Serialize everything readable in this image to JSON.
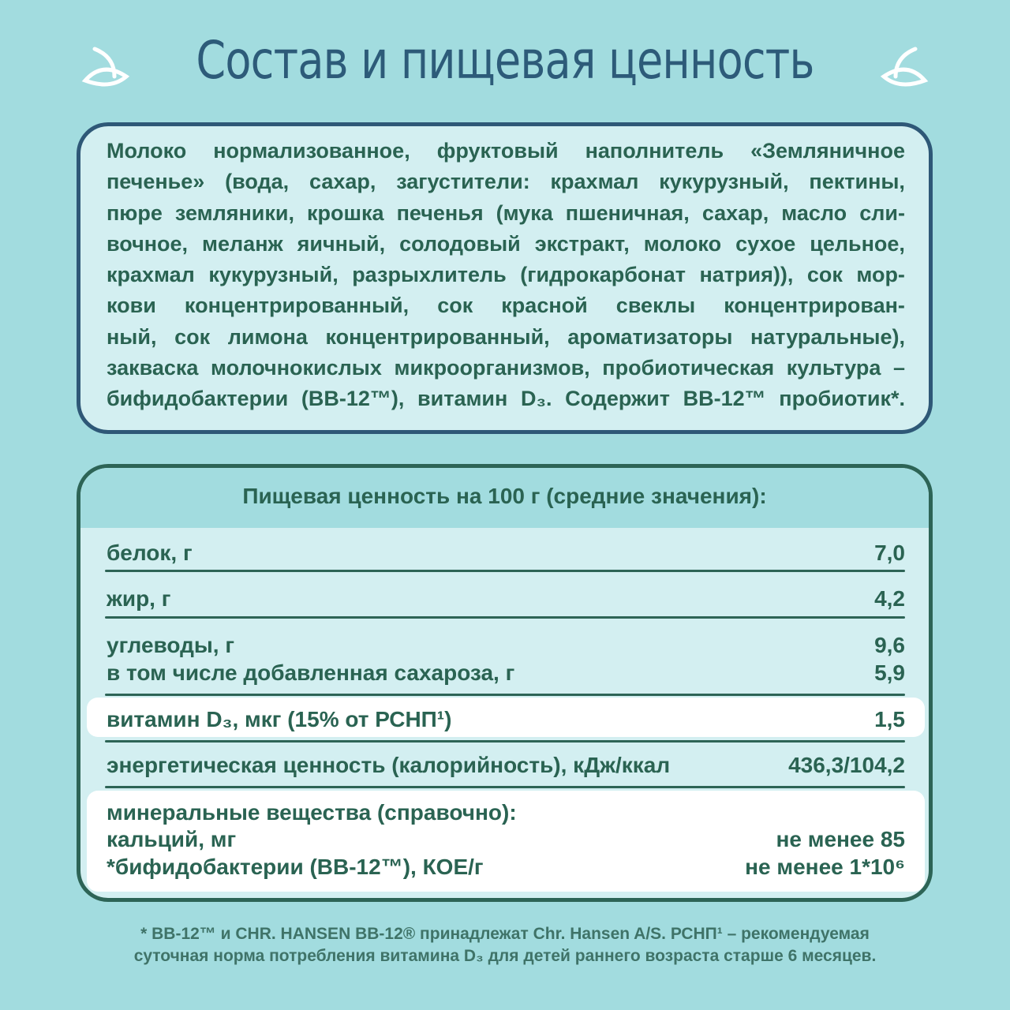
{
  "title": "Состав и пищевая ценность",
  "ingredients_lines": [
    "Молоко нормализованное, фруктовый наполнитель «Земляничное",
    "печенье» (вода, сахар, загустители: крахмал кукурузный, пектины,",
    "пюре земляники, крошка печенья (мука пшеничная, сахар, масло сли-",
    "вочное, меланж яичный, солодовый экстракт, молоко сухое цельное,",
    "крахмал кукурузный, разрыхлитель (гидрокарбонат натрия)), сок мор-",
    "кови концентрированный, сок красной свеклы концентрирован-",
    "ный, сок лимона концентрированный, ароматизаторы натуральные),",
    "закваска молочнокислых микроорганизмов, пробиотическая культура –",
    "бифидобактерии (BB-12™), витамин D₃. Содержит BB-12™ пробиотик*."
  ],
  "nutrition": {
    "heading": "Пищевая ценность на 100 г (средние значения):",
    "rows": [
      {
        "label": "белок, г",
        "value": "7,0"
      },
      {
        "label": "жир, г",
        "value": "4,2"
      },
      {
        "label": "углеводы, г",
        "value": "9,6"
      },
      {
        "label": "в том числе добавленная сахароза, г",
        "value": "5,9"
      },
      {
        "label": "витамин D₃, мкг (15% от РСНП¹)",
        "value": "1,5"
      },
      {
        "label": "энергетическая ценность (калорийность), кДж/ккал",
        "value": "436,3/104,2"
      },
      {
        "label": "минеральные вещества (справочно):",
        "value": ""
      },
      {
        "label": "кальций, мг",
        "value": "не менее 85"
      },
      {
        "label": "*бифидобактерии (BB-12™), КОЕ/г",
        "value": "не менее 1*10⁶"
      }
    ]
  },
  "footnote": [
    "* BB-12™ и CHR. HANSEN BB-12® принадлежат Chr. Hansen A/S. РСНП¹ – рекомендуемая",
    "суточная норма потребления витамина D₃ для детей раннего возраста старше 6 месяцев."
  ],
  "colors": {
    "background": "#a2dcdf",
    "panel": "#d3eff1",
    "text": "#2a6352",
    "title": "#2d5b79"
  }
}
